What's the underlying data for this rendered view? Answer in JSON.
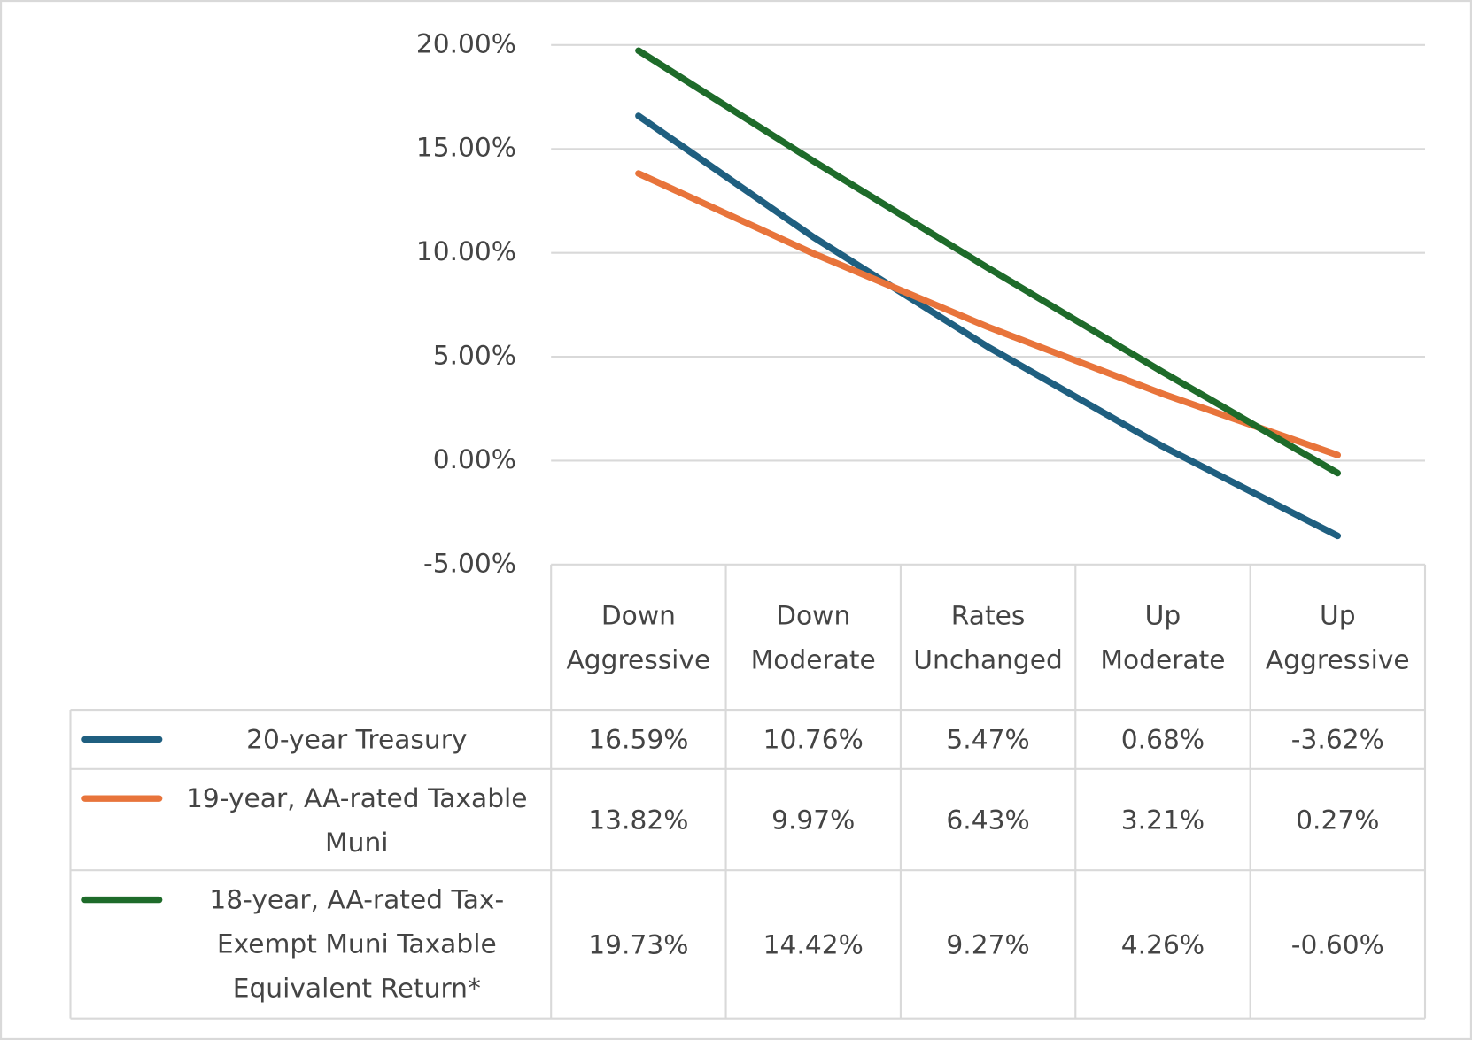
{
  "chart_data": {
    "type": "line",
    "categories": [
      "Down Aggressive",
      "Down Moderate",
      "Rates Unchanged",
      "Up Moderate",
      "Up Aggressive"
    ],
    "series": [
      {
        "name": "20-year Treasury",
        "color": "#1f5f80",
        "values": [
          16.59,
          10.76,
          5.47,
          0.68,
          -3.62
        ],
        "value_labels": [
          "16.59%",
          "10.76%",
          "5.47%",
          "0.68%",
          "-3.62%"
        ]
      },
      {
        "name": "19-year, AA-rated Taxable Muni",
        "color": "#e8743b",
        "values": [
          13.82,
          9.97,
          6.43,
          3.21,
          0.27
        ],
        "value_labels": [
          "13.82%",
          "9.97%",
          "6.43%",
          "3.21%",
          "0.27%"
        ]
      },
      {
        "name": "18-year, AA-rated Tax-Exempt Muni Taxable Equivalent Return*",
        "color": "#1e6b2a",
        "values": [
          19.73,
          14.42,
          9.27,
          4.26,
          -0.6
        ],
        "value_labels": [
          "19.73%",
          "14.42%",
          "9.27%",
          "4.26%",
          "-0.60%"
        ]
      }
    ],
    "ylim": [
      -5,
      20
    ],
    "yticks": [
      {
        "value": -5,
        "label": "-5.00%"
      },
      {
        "value": 0,
        "label": "0.00%"
      },
      {
        "value": 5,
        "label": "5.00%"
      },
      {
        "value": 10,
        "label": "10.00%"
      },
      {
        "value": 15,
        "label": "15.00%"
      },
      {
        "value": 20,
        "label": "20.00%"
      }
    ],
    "grid": true,
    "data_table": true
  }
}
